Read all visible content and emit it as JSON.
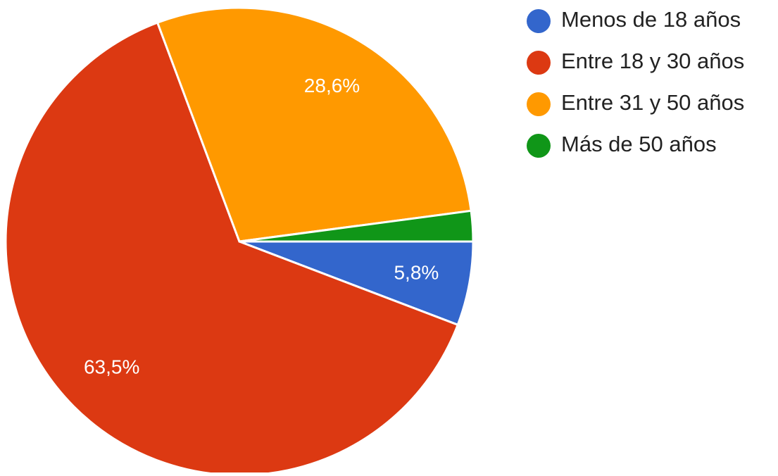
{
  "chart_data": {
    "type": "pie",
    "categories": [
      "Menos de 18 años",
      "Entre 18 y 30 años",
      "Entre 31 y 50 años",
      "Más de 50 años"
    ],
    "values": [
      5.8,
      63.5,
      28.6,
      2.1
    ],
    "value_labels": [
      "5,8%",
      "63,5%",
      "28,6%",
      null
    ],
    "colors": [
      "#3366cc",
      "#dc3912",
      "#ff9900",
      "#109618"
    ],
    "legend": "right"
  }
}
